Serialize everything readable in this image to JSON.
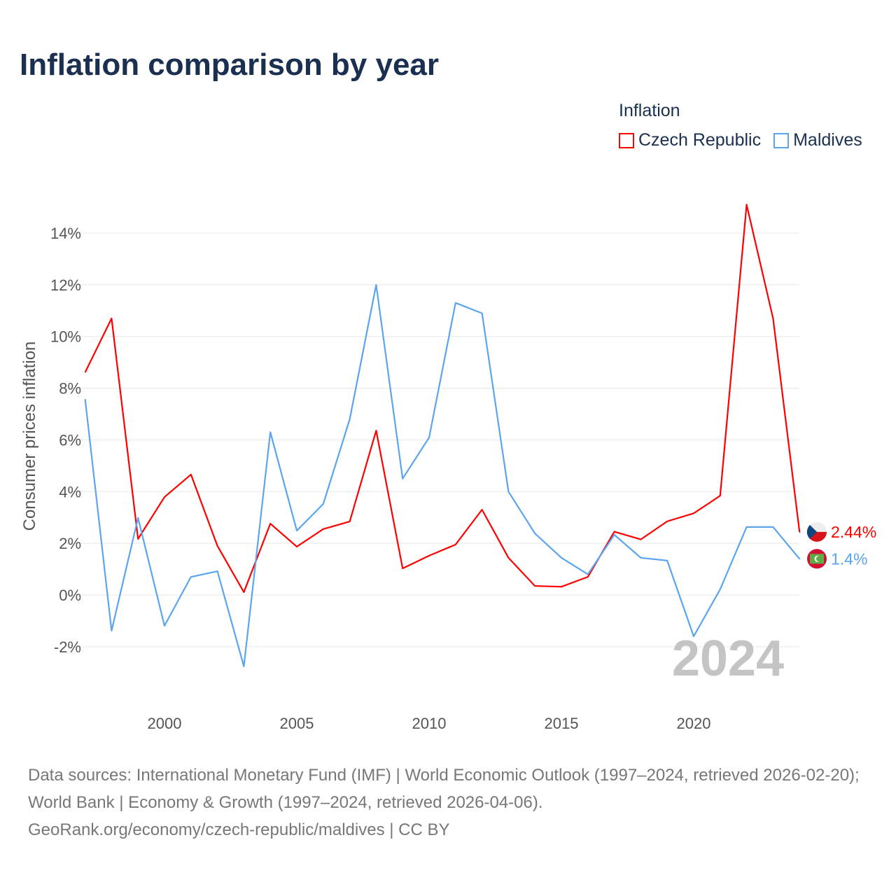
{
  "title": "Inflation comparison by year",
  "legend_title": "Inflation",
  "chart_data": {
    "type": "line",
    "title": "Inflation comparison by year",
    "xlabel": "",
    "ylabel": "Consumer prices inflation",
    "x": [
      1997,
      1998,
      1999,
      2000,
      2001,
      2002,
      2003,
      2004,
      2005,
      2006,
      2007,
      2008,
      2009,
      2010,
      2011,
      2012,
      2013,
      2014,
      2015,
      2016,
      2017,
      2018,
      2019,
      2020,
      2021,
      2022,
      2023,
      2024
    ],
    "xticks": [
      2000,
      2005,
      2010,
      2015,
      2020
    ],
    "xtick_labels": [
      "2000",
      "2005",
      "2010",
      "2015",
      "2020"
    ],
    "yticks": [
      -2,
      0,
      2,
      4,
      6,
      8,
      10,
      12,
      14
    ],
    "ytick_labels": [
      "-2%",
      "0%",
      "2%",
      "4%",
      "6%",
      "8%",
      "10%",
      "12%",
      "14%"
    ],
    "xlim": [
      1997,
      2024
    ],
    "ylim": [
      -3.8,
      15.8
    ],
    "grid": true,
    "legend_position": "top-right",
    "year_label": "2024",
    "series": [
      {
        "name": "Czech Republic",
        "color": "#ff0000",
        "end_label": "2.44%",
        "values": [
          8.61,
          10.7,
          2.17,
          3.79,
          4.66,
          1.9,
          0.11,
          2.76,
          1.87,
          2.55,
          2.84,
          6.36,
          1.03,
          1.52,
          1.95,
          3.3,
          1.44,
          0.35,
          0.32,
          0.7,
          2.45,
          2.15,
          2.85,
          3.16,
          3.84,
          15.1,
          10.7,
          2.44
        ]
      },
      {
        "name": "Maldives",
        "color": "#5aa5ee",
        "end_label": "1.4%",
        "values": [
          7.58,
          -1.38,
          2.98,
          -1.19,
          0.7,
          0.92,
          -2.76,
          6.3,
          2.49,
          3.52,
          6.8,
          12.0,
          4.5,
          6.09,
          11.3,
          10.9,
          4.0,
          2.38,
          1.44,
          0.8,
          2.33,
          1.44,
          1.33,
          -1.6,
          0.22,
          2.63,
          2.63,
          1.4
        ]
      }
    ]
  },
  "source": "Data sources: International Monetary Fund (IMF) | World Economic Outlook (1997–2024, retrieved 2026-02-20); World Bank | Economy & Growth (1997–2024, retrieved 2026-04-06).",
  "credit": "GeoRank.org/economy/czech-republic/maldives | CC BY"
}
